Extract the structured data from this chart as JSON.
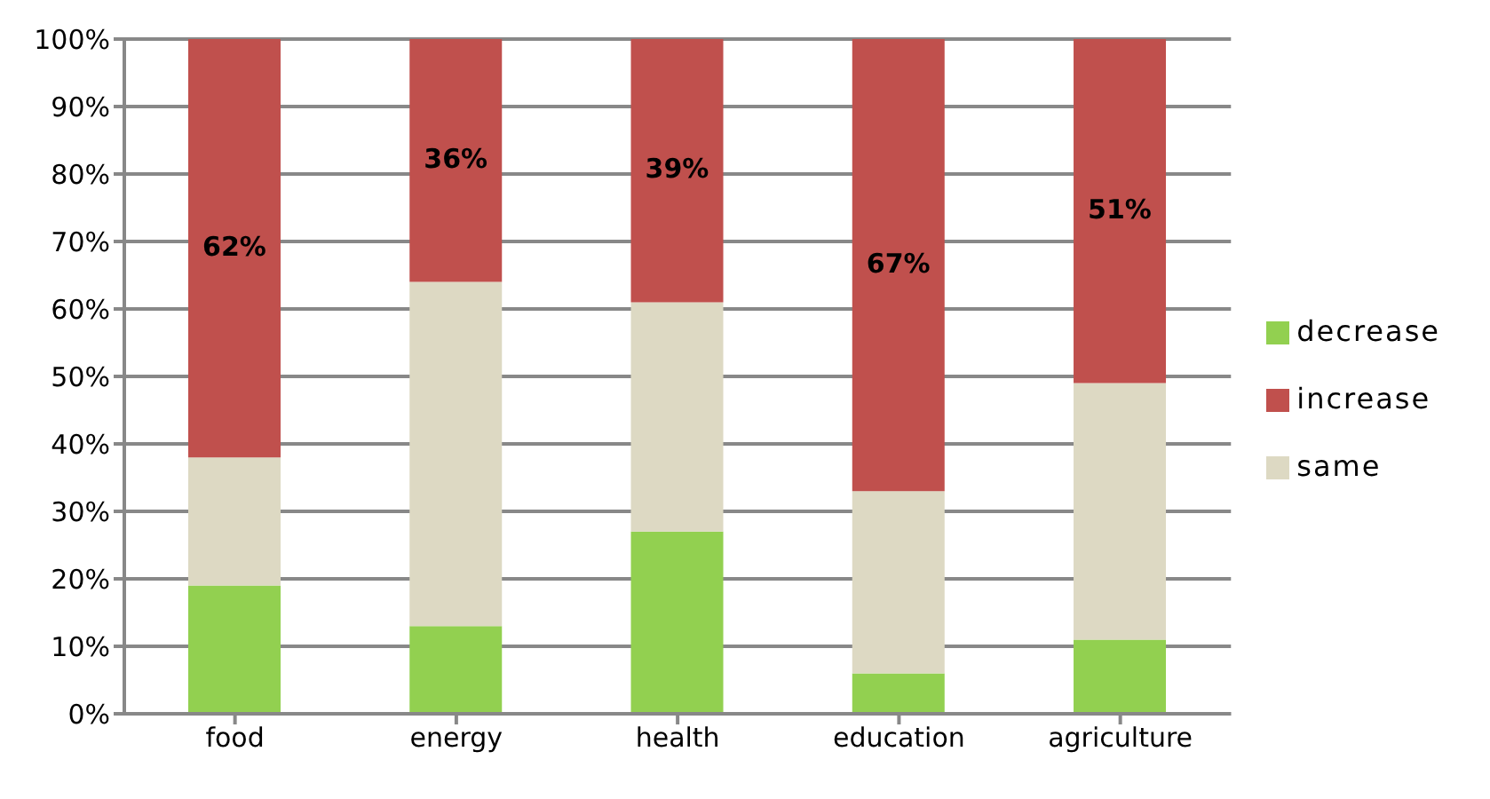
{
  "chart_data": {
    "type": "bar",
    "stacked": true,
    "categories": [
      "food",
      "energy",
      "health",
      "education",
      "agriculture"
    ],
    "series": [
      {
        "name": "decrease",
        "color": "#92d050",
        "values": [
          19,
          13,
          27,
          6,
          11
        ]
      },
      {
        "name": "same",
        "color": "#ddd9c3",
        "values": [
          19,
          51,
          34,
          27,
          38
        ]
      },
      {
        "name": "increase",
        "color": "#c0504d",
        "values": [
          62,
          36,
          39,
          67,
          51
        ],
        "value_labels": [
          "62%",
          "36%",
          "39%",
          "67%",
          "51%"
        ]
      }
    ],
    "ylim": [
      0,
      100
    ],
    "yticks": [
      {
        "value": 0,
        "label": "0%"
      },
      {
        "value": 10,
        "label": "10%"
      },
      {
        "value": 20,
        "label": "20%"
      },
      {
        "value": 30,
        "label": "30%"
      },
      {
        "value": 40,
        "label": "40%"
      },
      {
        "value": 50,
        "label": "50%"
      },
      {
        "value": 60,
        "label": "60%"
      },
      {
        "value": 70,
        "label": "70%"
      },
      {
        "value": 80,
        "label": "80%"
      },
      {
        "value": 90,
        "label": "90%"
      },
      {
        "value": 100,
        "label": "100%"
      }
    ],
    "grid": "y",
    "legend": "right"
  }
}
